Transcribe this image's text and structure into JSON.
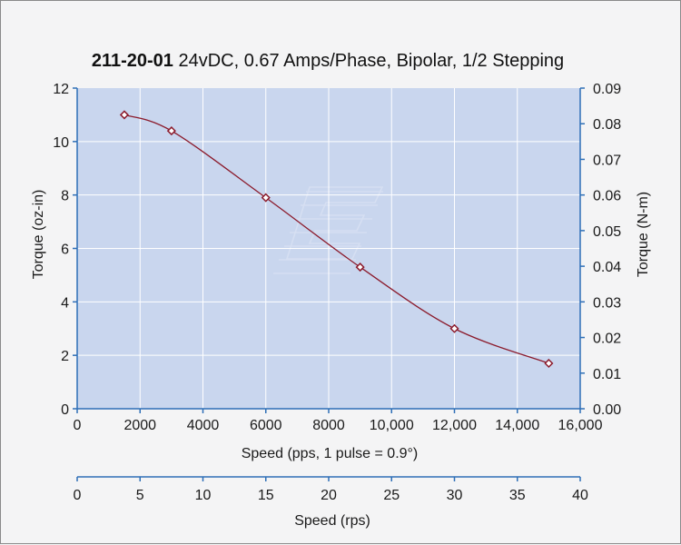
{
  "chart_data": {
    "type": "line",
    "title_bold": "211-20-01",
    "title_rest": " 24vDC, 0.67 Amps/Phase, Bipolar, 1/2 Stepping",
    "xlabel": "Speed (pps, 1 pulse = 0.9°)",
    "ylabel": "Torque (oz-in)",
    "y2label": "Torque (N-m)",
    "x2label": "Speed (rps)",
    "xlim": [
      0,
      16000
    ],
    "ylim": [
      0,
      12
    ],
    "y2lim": [
      0,
      0.09
    ],
    "x2lim": [
      0,
      40
    ],
    "xticks": [
      "0",
      "2000",
      "4000",
      "6000",
      "8000",
      "10,000",
      "12,000",
      "14,000",
      "16,000"
    ],
    "yticks": [
      "0",
      "2",
      "4",
      "6",
      "8",
      "10",
      "12"
    ],
    "y2ticks": [
      "0.00",
      "0.01",
      "0.02",
      "0.03",
      "0.04",
      "0.05",
      "0.06",
      "0.07",
      "0.08",
      "0.09"
    ],
    "x2ticks": [
      "0",
      "5",
      "10",
      "15",
      "20",
      "25",
      "30",
      "35",
      "40"
    ],
    "grid": true,
    "legend": "none",
    "series": [
      {
        "x": [
          1500,
          3000,
          6000,
          9000,
          12000,
          15000
        ],
        "y": [
          11.0,
          10.4,
          7.9,
          5.3,
          3.0,
          1.7
        ]
      }
    ],
    "colors": {
      "plot_bg": "#c9d6ee",
      "grid": "#ffffff",
      "axis": "#2e6fb7",
      "series": "#8b1a2b",
      "marker_fill": "#ffffff"
    }
  }
}
